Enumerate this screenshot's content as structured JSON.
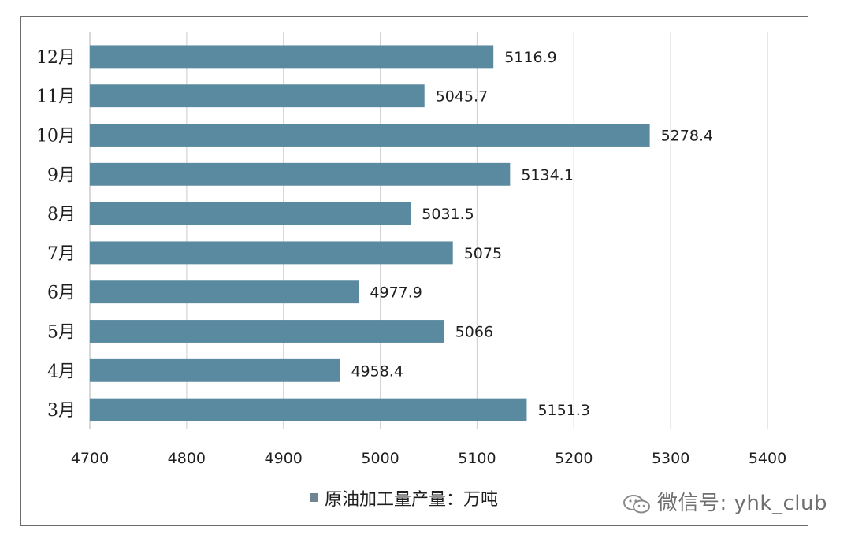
{
  "chart_data": {
    "type": "bar",
    "orientation": "horizontal",
    "categories": [
      "3月",
      "4月",
      "5月",
      "6月",
      "7月",
      "8月",
      "9月",
      "10月",
      "11月",
      "12月"
    ],
    "series": [
      {
        "name": "原油加工量产量：万吨",
        "values": [
          5151.3,
          4958.4,
          5066,
          4977.9,
          5075,
          5031.5,
          5134.1,
          5278.4,
          5045.7,
          5116.9
        ],
        "labels": [
          "5151.3",
          "4958.4",
          "5066",
          "4977.9",
          "5075",
          "5031.5",
          "5134.1",
          "5278.4",
          "5045.7",
          "5116.9"
        ]
      }
    ],
    "xlim": [
      4700,
      5400
    ],
    "xticks": [
      "4700",
      "4800",
      "4900",
      "5000",
      "5100",
      "5200",
      "5300",
      "5400"
    ],
    "grid": true,
    "legend_position": "bottom",
    "colors": {
      "bar": "#5a8aa0",
      "grid": "#d4d4d4",
      "text": "#1f1f1f"
    }
  },
  "watermark": {
    "text": "微信号: yhk_club",
    "icon": "wechat-icon"
  }
}
